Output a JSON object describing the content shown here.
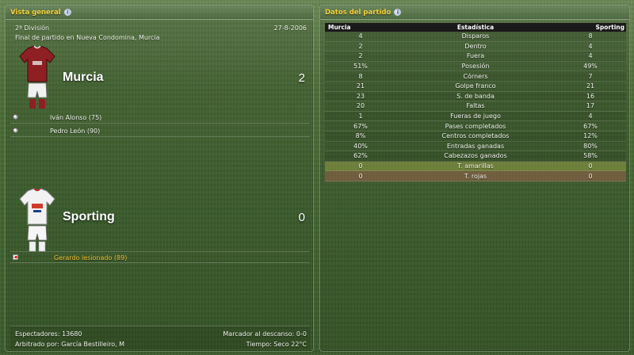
{
  "overview": {
    "title": "Vista general",
    "division": "2ª División",
    "date": "27-8-2006",
    "match_note": "Final de partido en Nueva Condomina, Murcia",
    "home": {
      "name": "Murcia",
      "score": "2",
      "scorers": [
        "Iván Alonso (75)",
        "Pedro León (90)"
      ]
    },
    "away": {
      "name": "Sporting",
      "score": "0",
      "injury": "Gerardo lesionado (89)"
    },
    "footer": {
      "spectators": "Espectadores: 13680",
      "halftime": "Marcador al descanso: 0-0",
      "referee": "Arbitrado por: García Bestilleiro, M",
      "weather": "Tiempo: Seco 22°C"
    }
  },
  "stats": {
    "title": "Datos del partido",
    "headers": {
      "home": "Murcia",
      "label": "Estadística",
      "away": "Sporting"
    },
    "rows": [
      {
        "label": "Disparos",
        "home": "4",
        "away": "8"
      },
      {
        "label": "Dentro",
        "home": "2",
        "away": "4"
      },
      {
        "label": "Fuera",
        "home": "2",
        "away": "4"
      },
      {
        "label": "Posesión",
        "home": "51%",
        "away": "49%"
      },
      {
        "label": "Córners",
        "home": "8",
        "away": "7"
      },
      {
        "label": "Golpe franco",
        "home": "21",
        "away": "21"
      },
      {
        "label": "S. de banda",
        "home": "23",
        "away": "16"
      },
      {
        "label": "Faltas",
        "home": "20",
        "away": "17"
      },
      {
        "label": "Fueras de juego",
        "home": "1",
        "away": "4"
      },
      {
        "label": "Pases completados",
        "home": "67%",
        "away": "67%"
      },
      {
        "label": "Centros completados",
        "home": "8%",
        "away": "12%"
      },
      {
        "label": "Entradas ganadas",
        "home": "40%",
        "away": "80%"
      },
      {
        "label": "Cabezazos ganados",
        "home": "62%",
        "away": "58%"
      },
      {
        "label": "T. amarillas",
        "home": "0",
        "away": "0"
      },
      {
        "label": "T. rojas",
        "home": "0",
        "away": "0"
      }
    ]
  },
  "colors": {
    "header_title": "#f4d23a",
    "injury_text": "#f2c230",
    "home_kit": "#8e1f22",
    "away_kit": "#f2f2f2"
  },
  "icons": [
    "info-icon",
    "ball-icon",
    "injury-icon",
    "home-kit-icon",
    "away-kit-icon"
  ]
}
